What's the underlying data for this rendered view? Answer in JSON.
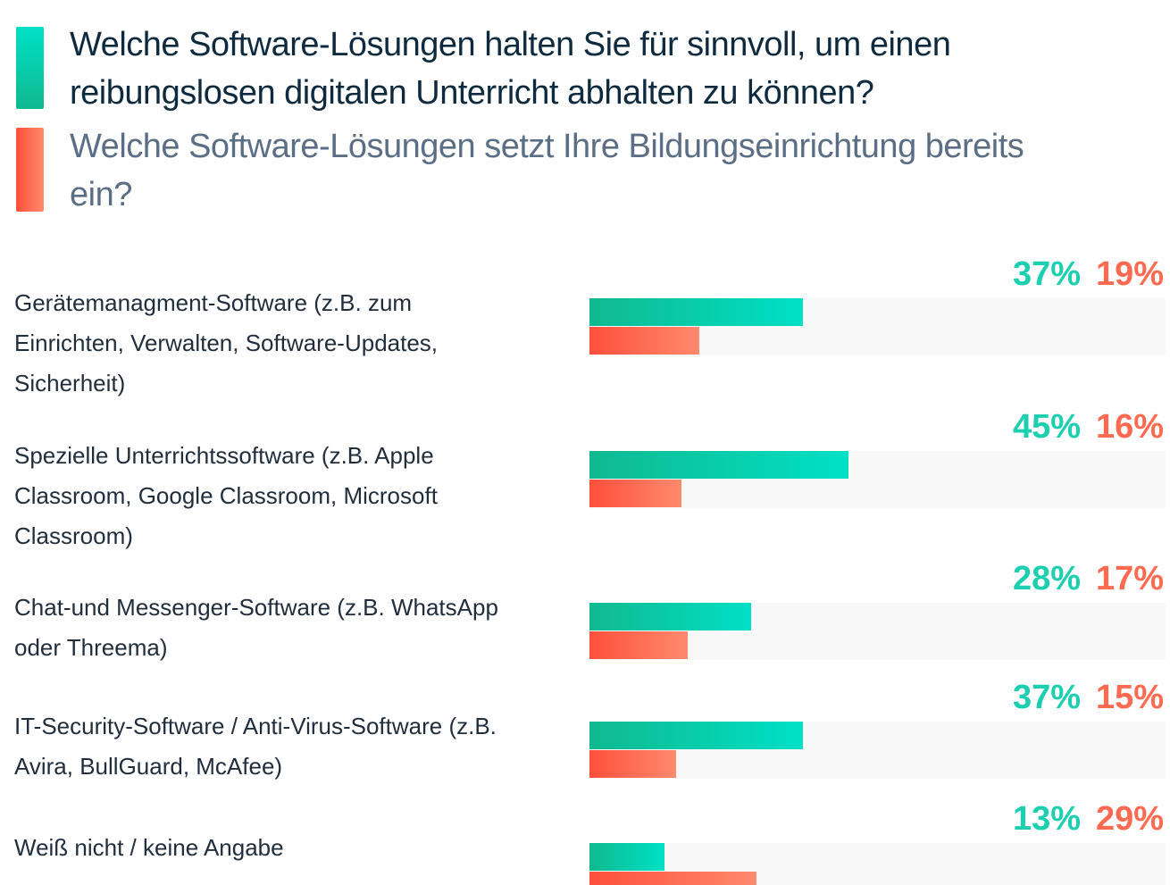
{
  "chart_data": {
    "type": "bar",
    "orientation": "horizontal",
    "categories": [
      "Gerätemanagment-Software (z.B. zum Einrichten, Verwalten, Software-Updates, Sicherheit)",
      "Spezielle Unterrichtssoftware (z.B. Apple Classroom, Google Classroom, Microsoft Classroom)",
      "Chat-und Messenger-Software (z.B. WhatsApp oder Threema)",
      "IT-Security-Software / Anti-Virus-Software (z.B. Avira, BullGuard, McAfee)",
      "Weiß nicht / keine Angabe"
    ],
    "series": [
      {
        "name": "Welche Software-Lösungen halten Sie für sinnvoll, um einen reibungslosen digitalen Unterricht abhalten zu können?",
        "color": "#14c8a6",
        "values": [
          37,
          45,
          28,
          37,
          13
        ],
        "value_labels": [
          "37%",
          "45%",
          "28%",
          "37%",
          "13%"
        ]
      },
      {
        "name": "Welche Software-Lösungen setzt Ihre Bildungseinrichtung bereits ein?",
        "color": "#ff6a50",
        "values": [
          19,
          16,
          17,
          15,
          29
        ],
        "value_labels": [
          "19%",
          "16%",
          "17%",
          "15%",
          "29%"
        ]
      }
    ],
    "xlim": [
      0,
      100
    ]
  }
}
